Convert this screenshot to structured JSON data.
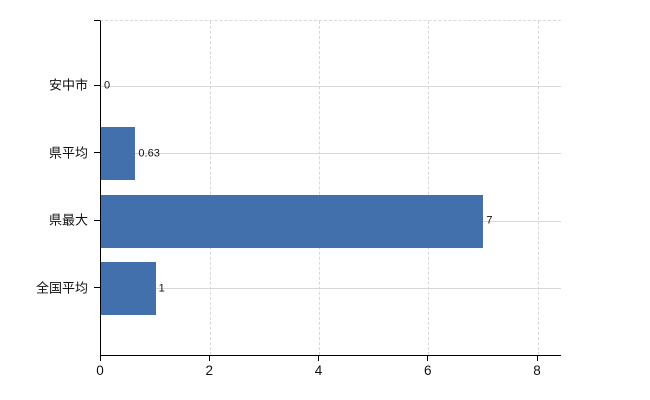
{
  "chart_data": {
    "type": "bar",
    "orientation": "horizontal",
    "categories": [
      "安中市",
      "県平均",
      "県最大",
      "全国平均"
    ],
    "values": [
      0,
      0.63,
      7,
      1
    ],
    "value_labels": [
      "0",
      "0.63",
      "7",
      "1"
    ],
    "xticks": [
      0,
      2,
      4,
      6,
      8
    ],
    "xtick_labels": [
      "0",
      "2",
      "4",
      "6",
      "8"
    ],
    "xlim": [
      0,
      8.42
    ],
    "title": "",
    "xlabel": "",
    "ylabel": "",
    "grid": true,
    "legend": false,
    "colors": {
      "bar": "#4170ad",
      "h_gridline": "#d4dbd4",
      "v_gridline": "#d7d7d7",
      "axis": "#000000",
      "text": "#111111",
      "background": "#ffffff"
    }
  }
}
